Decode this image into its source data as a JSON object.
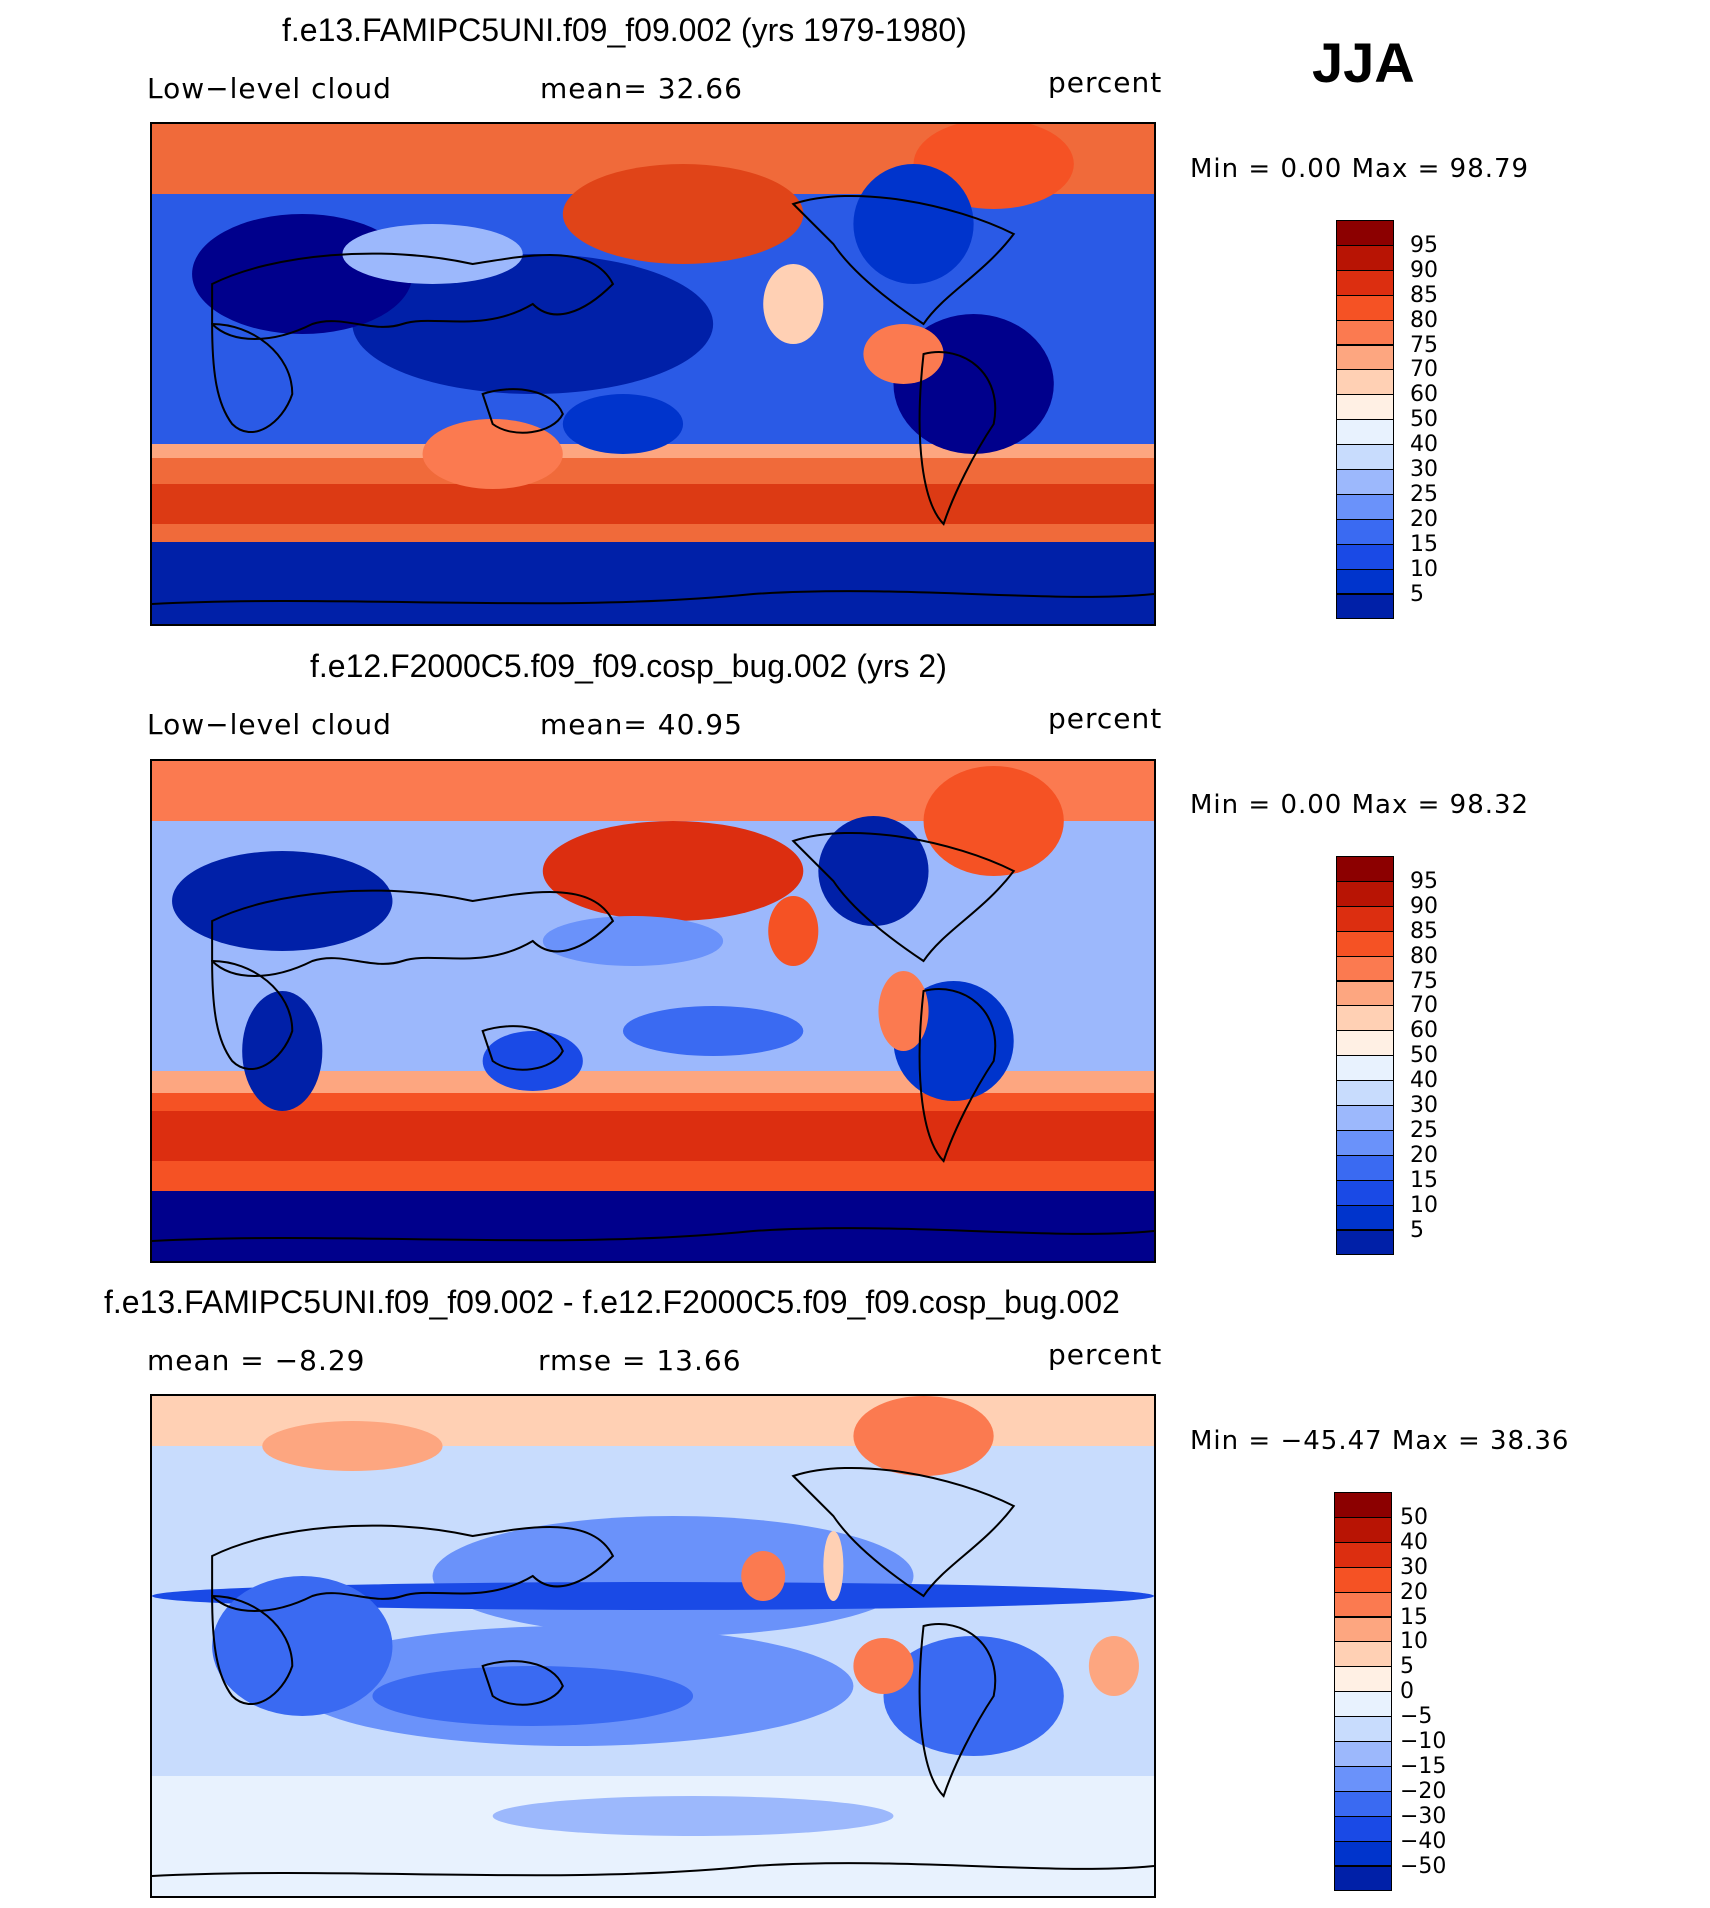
{
  "season": "JJA",
  "palette_abs": [
    "#00008c",
    "#0020a8",
    "#0034cc",
    "#1a4ae6",
    "#3a6af2",
    "#6a92fa",
    "#9cb8fc",
    "#c8dcfd",
    "#e8f2fe",
    "#fff0e4",
    "#ffd0b4",
    "#fda680",
    "#fb7a50",
    "#f55224",
    "#dc2e10",
    "#b81404",
    "#8c0000"
  ],
  "palette_diff": [
    "#00008c",
    "#0020a8",
    "#0034cc",
    "#1a4ae6",
    "#3a6af2",
    "#6a92fa",
    "#9cb8fc",
    "#c8dcfd",
    "#e8f2fe",
    "#fff0e4",
    "#ffd0b4",
    "#fda680",
    "#fb7a50",
    "#f55224",
    "#dc2e10",
    "#b81404",
    "#8c0000"
  ],
  "panels": [
    {
      "title": "f.e13.FAMIPC5UNI.f09_f09.002 (yrs 1979-1980)",
      "left_label": "Low−level cloud",
      "center_label": "mean=   32.66",
      "right_label": "percent",
      "minmax": "Min =     0.00  Max =    98.79",
      "colorbar": {
        "levels": [
          "95",
          "90",
          "85",
          "80",
          "75",
          "70",
          "60",
          "50",
          "40",
          "30",
          "25",
          "20",
          "15",
          "10",
          "5"
        ]
      }
    },
    {
      "title": "f.e12.F2000C5.f09_f09.cosp_bug.002 (yrs 2)",
      "left_label": "Low−level cloud",
      "center_label": "mean=   40.95",
      "right_label": "percent",
      "minmax": "Min =     0.00  Max =    98.32",
      "colorbar": {
        "levels": [
          "95",
          "90",
          "85",
          "80",
          "75",
          "70",
          "60",
          "50",
          "40",
          "30",
          "25",
          "20",
          "15",
          "10",
          "5"
        ]
      }
    },
    {
      "title": "f.e13.FAMIPC5UNI.f09_f09.002 - f.e12.F2000C5.f09_f09.cosp_bug.002",
      "left_label": "mean =   −8.29",
      "center_label": "rmse =   13.66",
      "right_label": "percent",
      "minmax": "Min = −45.47  Max =    38.36",
      "colorbar": {
        "levels": [
          "50",
          "40",
          "30",
          "20",
          "15",
          "10",
          "5",
          "0",
          "−5",
          "−10",
          "−15",
          "−20",
          "−30",
          "−40",
          "−50"
        ]
      }
    }
  ]
}
